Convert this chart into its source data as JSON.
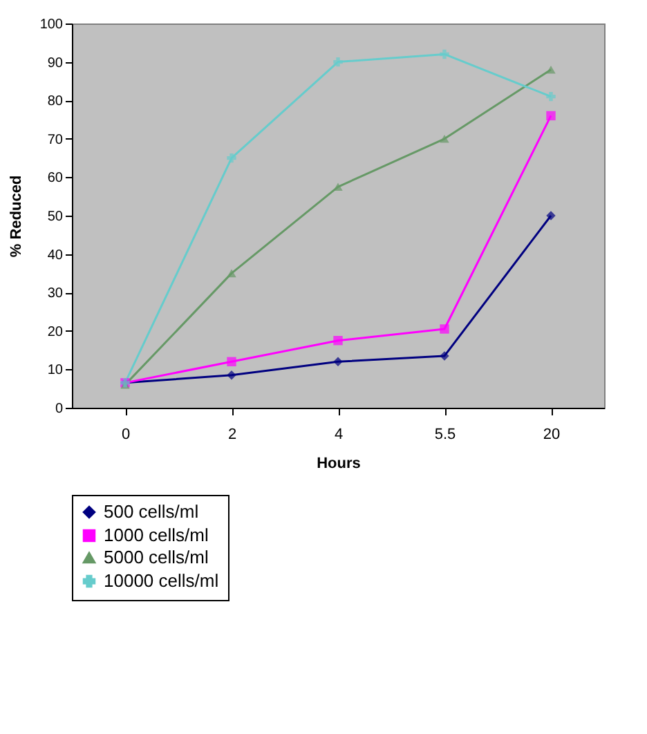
{
  "chart_data": {
    "type": "line",
    "xlabel": "Hours",
    "ylabel": "% Reduced",
    "categories": [
      "0",
      "2",
      "4",
      "5.5",
      "20"
    ],
    "ylim": [
      0,
      100
    ],
    "yticks": [
      0,
      10,
      20,
      30,
      40,
      50,
      60,
      70,
      80,
      90,
      100
    ],
    "grid": false,
    "legend": "bottom",
    "series": [
      {
        "name": "500 cells/ml",
        "color": "#000080",
        "marker": "diamond",
        "values": [
          6.5,
          8.5,
          12,
          13.5,
          50
        ]
      },
      {
        "name": "1000 cells/ml",
        "color": "#ff00ff",
        "marker": "square",
        "values": [
          6.5,
          12,
          17.5,
          20.5,
          76
        ]
      },
      {
        "name": "5000 cells/ml",
        "color": "#669966",
        "marker": "triangle",
        "values": [
          6,
          35,
          57.5,
          70,
          88
        ]
      },
      {
        "name": "10000 cells/ml",
        "color": "#66cccc",
        "marker": "cross",
        "values": [
          6.5,
          65,
          90,
          92,
          81
        ]
      }
    ]
  }
}
